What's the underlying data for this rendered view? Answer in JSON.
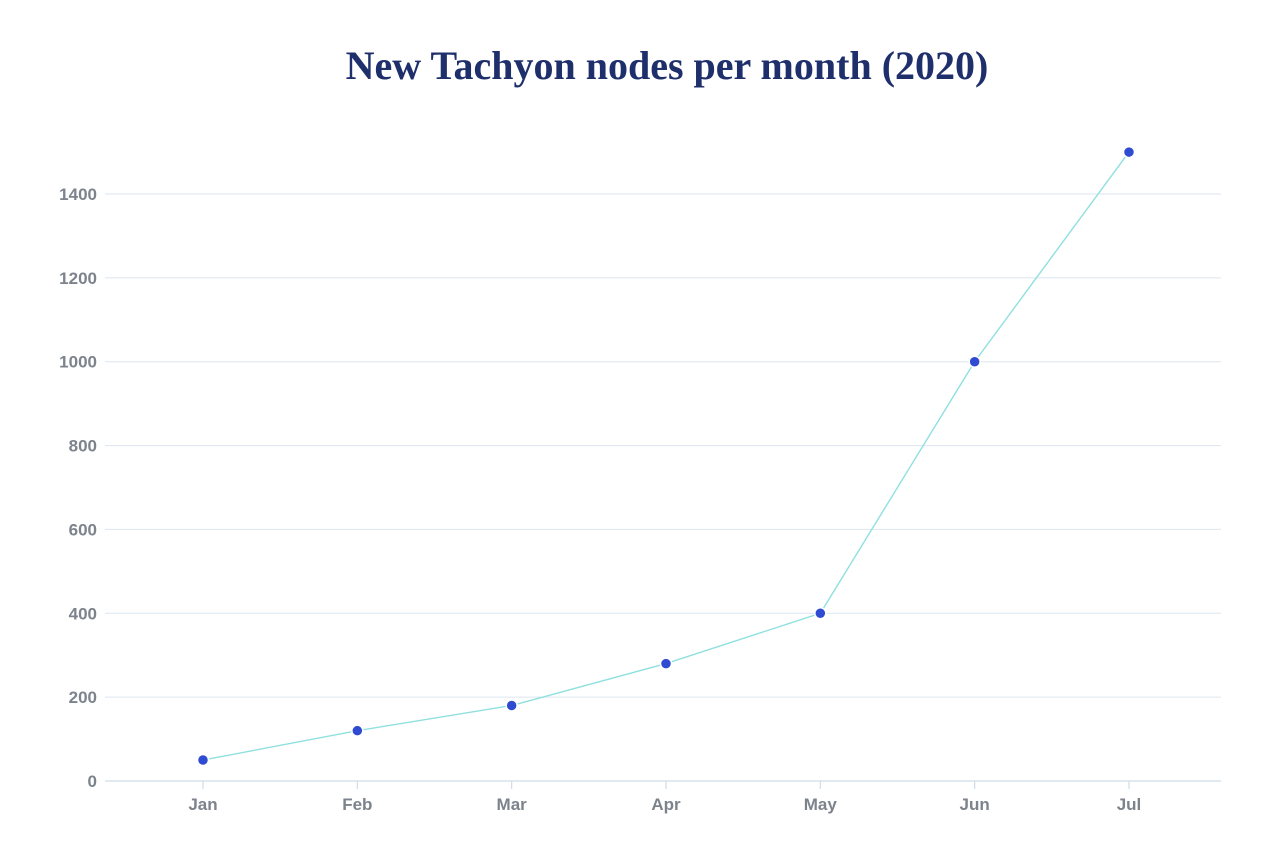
{
  "chart_data": {
    "type": "line",
    "title": "New Tachyon nodes per month (2020)",
    "xlabel": "",
    "ylabel": "",
    "categories": [
      "Jan",
      "Feb",
      "Mar",
      "Apr",
      "May",
      "Jun",
      "Jul"
    ],
    "series": [
      {
        "values": [
          50,
          120,
          180,
          280,
          400,
          1000,
          1500
        ]
      }
    ],
    "ylim": [
      0,
      1500
    ],
    "yticks": [
      0,
      200,
      400,
      600,
      800,
      1000,
      1200,
      1400
    ],
    "grid": true,
    "legend": "none",
    "colors": {
      "title": "#1f2f6b",
      "line": "#8fe0df",
      "point": "#2e4bd1",
      "grid": "#dbe6f0",
      "tick_label": "#7c838c"
    }
  }
}
